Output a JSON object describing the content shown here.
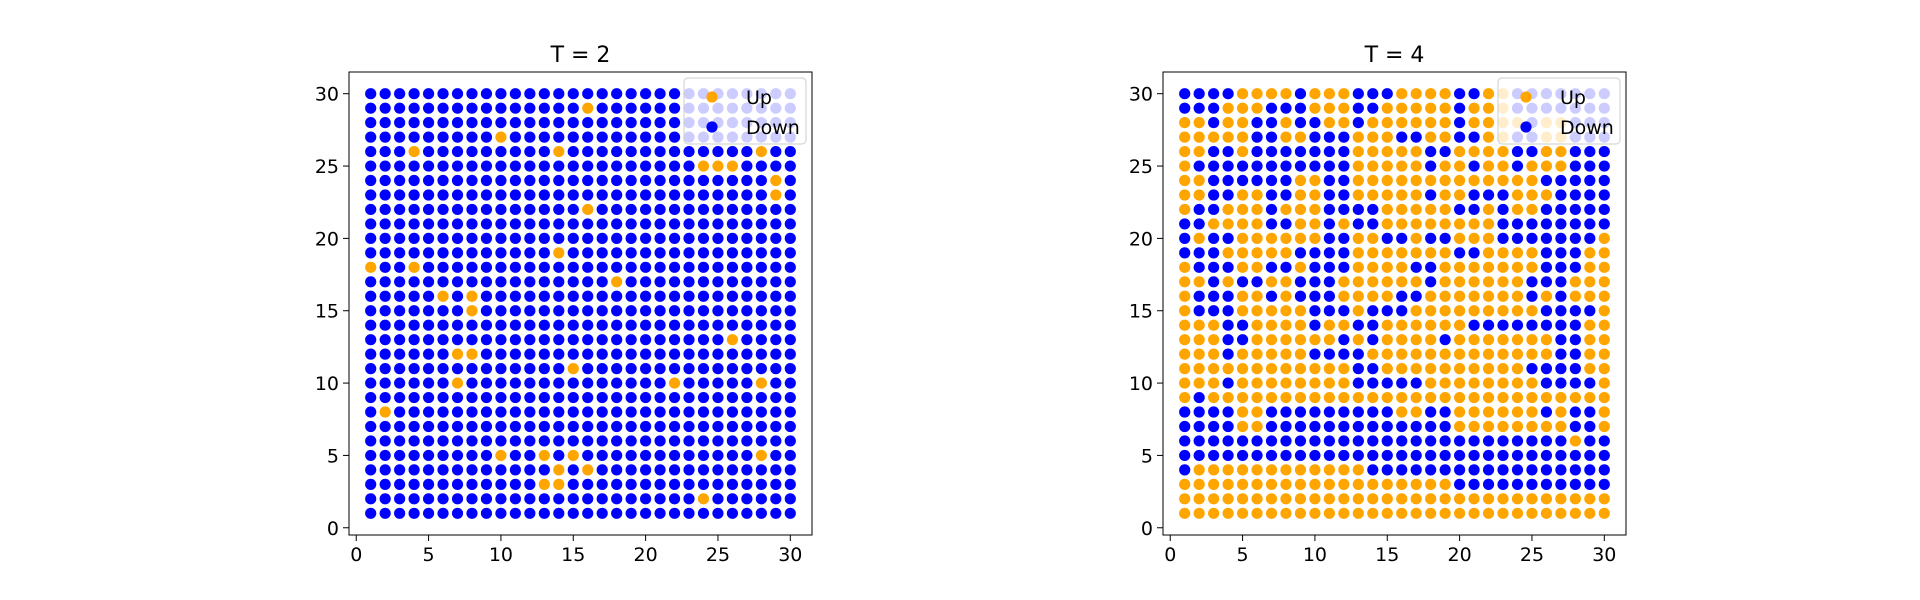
{
  "colors": {
    "up": "#ffa500",
    "down": "#0000ff"
  },
  "chart_data": [
    {
      "type": "scatter",
      "title": "T = 2",
      "xlabel": "",
      "ylabel": "",
      "xlim": [
        -0.5,
        31.5
      ],
      "ylim": [
        -0.5,
        31.5
      ],
      "xticks": [
        0,
        5,
        10,
        15,
        20,
        25,
        30
      ],
      "yticks": [
        0,
        5,
        10,
        15,
        20,
        25,
        30
      ],
      "grid": false,
      "legend": {
        "placement": "top-right",
        "entries": [
          "Up",
          "Down"
        ]
      },
      "lattice": {
        "x_values": [
          1,
          30
        ],
        "y_values": [
          1,
          30
        ],
        "step": 1
      },
      "series": [
        {
          "name": "Up",
          "points": [
            [
              16,
              29
            ],
            [
              4,
              26
            ],
            [
              10,
              27
            ],
            [
              14,
              26
            ],
            [
              24,
              25
            ],
            [
              25,
              25
            ],
            [
              26,
              25
            ],
            [
              28,
              26
            ],
            [
              29,
              24
            ],
            [
              29,
              23
            ],
            [
              16,
              22
            ],
            [
              14,
              19
            ],
            [
              1,
              18
            ],
            [
              4,
              18
            ],
            [
              18,
              17
            ],
            [
              6,
              16
            ],
            [
              8,
              16
            ],
            [
              8,
              15
            ],
            [
              26,
              13
            ],
            [
              7,
              12
            ],
            [
              8,
              12
            ],
            [
              15,
              11
            ],
            [
              7,
              10
            ],
            [
              22,
              10
            ],
            [
              28,
              10
            ],
            [
              2,
              8
            ],
            [
              10,
              5
            ],
            [
              13,
              5
            ],
            [
              15,
              5
            ],
            [
              14,
              4
            ],
            [
              16,
              4
            ],
            [
              13,
              3
            ],
            [
              14,
              3
            ],
            [
              28,
              5
            ],
            [
              24,
              2
            ]
          ]
        },
        {
          "name": "Down",
          "points": "all remaining lattice sites"
        }
      ]
    },
    {
      "type": "scatter",
      "title": "T = 4",
      "xlabel": "",
      "ylabel": "",
      "xlim": [
        -0.5,
        31.5
      ],
      "ylim": [
        -0.5,
        31.5
      ],
      "xticks": [
        0,
        5,
        10,
        15,
        20,
        25,
        30
      ],
      "yticks": [
        0,
        5,
        10,
        15,
        20,
        25,
        30
      ],
      "grid": false,
      "legend": {
        "placement": "top-right",
        "entries": [
          "Up",
          "Down"
        ]
      },
      "lattice": {
        "x_values": [
          1,
          30
        ],
        "y_values": [
          1,
          30
        ],
        "step": 1
      },
      "rows": [
        "DDDDUUUUDUUUDDDUUUUDDUUDDDDDDD",
        "DDDUUUDDDUUUDDUUUUUDUUUDDDDDDD",
        "UUDUUDDUDDUUDUUUUUUDUUUUDUUDDD",
        "UUUUUDDUUDDDUUUDDUUDDUUDDUUDDD",
        "UUDDUDDDDDDDUUUUUDDUUUUDDUUDDD",
        "UDDDDDDDDDDDUUUUUDUUDUUDUUUDDD",
        "UUDDDDDDUUDDUUUUUUUUUUUUUDDDDD",
        "UUDDUUDDUUDDUUUUUDUUDDDUUUDDDD",
        "UDDUUUDUUUDDDDUUUUUDDUDUUDDDDD",
        "DDUUUUDDUUDUDDUUUUUUUUDDDDDDDD",
        "DUDDUUUUUUDDUUDDUDDUUUDDDDDDDU",
        "DDDUUUUUDDDDUUUUUUUDDUUUUDDDUU",
        "UDDDUUDDUDDDUUUUDDUUUUUUUDDDUU",
        "UUDUDDUUDDDUUUUUUDUUUUUUDDDUUU",
        "UDDDUUDUDDDUUUUDDUUUUUUUDUDUUU",
        "UDDDUUUUUDDDUDDDUUUUUUUUUDDDDU",
        "UUUDDUUUUDUUDDUUUUUUDDDDDDDDUU",
        "UUUDDUUUUUUDUDUUUUDUUUUUUUDDUU",
        "UUUDUUUUUDDDDUUUUUUUUUUUUUDDUU",
        "UUUUUUUUUUUUDDUUUUUUUUUUDDDDUU",
        "UUUDUUUUUUUUDDDDDUUUUUUUUDDDDU",
        "UDUUUUUUUUUUUUUUUUUUUUUUUUUUUU",
        "DDDDUUDDDDDDDDDUUDDUUUUUUDUDDU",
        "DDDDUUDDDDDDDDDDDDDUUUUUUUUDDU",
        "DDDDDDDDDDDDDDDDDDDDDDDDDDDUDD",
        "DDDDDDDDDDDDDDDDDDDDDDDDDDDDDD",
        "DUUUUUUUUUUUUDDDDDDDDDDDDDDDDD",
        "UUUUUUUUUUUUUUUUUUUDDDDDDDDDDD",
        "UUUUUUUUUUUUUUUUUUUUUUUUUUUUUU",
        "UUUUUUUUUUUUUUUUUUUUUUUUUUUUUU"
      ]
    }
  ]
}
